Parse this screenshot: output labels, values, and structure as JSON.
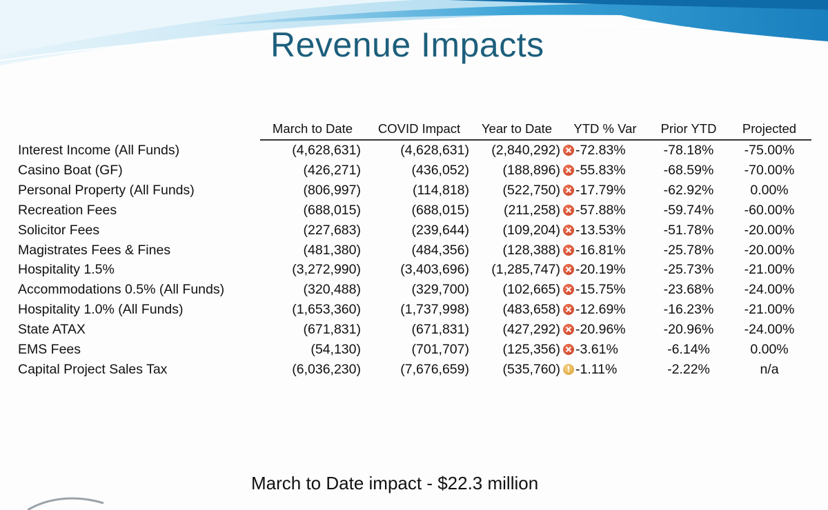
{
  "slide": {
    "title": "Revenue Impacts",
    "footer": "March to Date impact - $22.3 million",
    "accent_color": "#1d5f7c",
    "banner_color": "#1e8bc3"
  },
  "table": {
    "headers": {
      "march_to_date": "March to Date",
      "covid_impact": "COVID Impact",
      "year_to_date": "Year to Date",
      "ytd_var": "YTD % Var",
      "prior_ytd": "Prior YTD",
      "projected": "Projected"
    },
    "rows": [
      {
        "label": "Interest Income (All Funds)",
        "march": "(4,628,631)",
        "covid": "(4,628,631)",
        "ytd": "(2,840,292)",
        "status": "negative-x-icon",
        "var": "-72.83%",
        "prior": "-78.18%",
        "proj": "-75.00%"
      },
      {
        "label": "Casino Boat (GF)",
        "march": "(426,271)",
        "covid": "(436,052)",
        "ytd": "(188,896)",
        "status": "negative-x-icon",
        "var": "-55.83%",
        "prior": "-68.59%",
        "proj": "-70.00%"
      },
      {
        "label": "Personal Property (All Funds)",
        "march": "(806,997)",
        "covid": "(114,818)",
        "ytd": "(522,750)",
        "status": "negative-x-icon",
        "var": "-17.79%",
        "prior": "-62.92%",
        "proj": "0.00%"
      },
      {
        "label": "Recreation Fees",
        "march": "(688,015)",
        "covid": "(688,015)",
        "ytd": "(211,258)",
        "status": "negative-x-icon",
        "var": "-57.88%",
        "prior": "-59.74%",
        "proj": "-60.00%"
      },
      {
        "label": "Solicitor Fees",
        "march": "(227,683)",
        "covid": "(239,644)",
        "ytd": "(109,204)",
        "status": "negative-x-icon",
        "var": "-13.53%",
        "prior": "-51.78%",
        "proj": "-20.00%"
      },
      {
        "label": "Magistrates Fees & Fines",
        "march": "(481,380)",
        "covid": "(484,356)",
        "ytd": "(128,388)",
        "status": "negative-x-icon",
        "var": "-16.81%",
        "prior": "-25.78%",
        "proj": "-20.00%"
      },
      {
        "label": "Hospitality 1.5%",
        "march": "(3,272,990)",
        "covid": "(3,403,696)",
        "ytd": "(1,285,747)",
        "status": "negative-x-icon",
        "var": "-20.19%",
        "prior": "-25.73%",
        "proj": "-21.00%"
      },
      {
        "label": "Accommodations 0.5% (All Funds)",
        "march": "(320,488)",
        "covid": "(329,700)",
        "ytd": "(102,665)",
        "status": "negative-x-icon",
        "var": "-15.75%",
        "prior": "-23.68%",
        "proj": "-24.00%"
      },
      {
        "label": "Hospitality 1.0% (All Funds)",
        "march": "(1,653,360)",
        "covid": "(1,737,998)",
        "ytd": "(483,658)",
        "status": "negative-x-icon",
        "var": "-12.69%",
        "prior": "-16.23%",
        "proj": "-21.00%"
      },
      {
        "label": "State ATAX",
        "march": "(671,831)",
        "covid": "(671,831)",
        "ytd": "(427,292)",
        "status": "negative-x-icon",
        "var": "-20.96%",
        "prior": "-20.96%",
        "proj": "-24.00%"
      },
      {
        "label": "EMS Fees",
        "march": "(54,130)",
        "covid": "(701,707)",
        "ytd": "(125,356)",
        "status": "negative-x-icon",
        "var": "-3.61%",
        "prior": "-6.14%",
        "proj": "0.00%"
      },
      {
        "label": "Capital Project Sales Tax",
        "march": "(6,036,230)",
        "covid": "(7,676,659)",
        "ytd": "(535,760)",
        "status": "warning-exclamation-icon",
        "var": "-1.11%",
        "prior": "-2.22%",
        "proj": "n/a"
      }
    ]
  }
}
